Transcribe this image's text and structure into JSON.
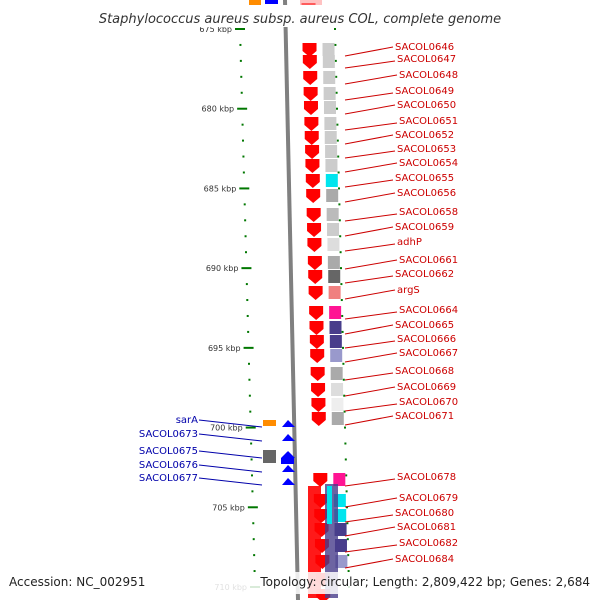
{
  "title": "Staphylococcus aureus subsp. aureus COL, complete genome",
  "footer": {
    "accession": "Accession: NC_002951",
    "topology": "Topology: circular; Length: 2,809,422 bp; Genes: 2,684"
  },
  "colors": {
    "forward_gene": "#ff0000",
    "reverse_gene": "#0000ff",
    "tick": "#007700",
    "backbone": "#808080",
    "forward_label": "#cc0000",
    "reverse_label": "#0000aa"
  },
  "scale": {
    "start_kbp": 675,
    "end_kbp": 710,
    "labeled_ticks": [
      "675 kbp",
      "680 kbp",
      "685 kbp",
      "690 kbp",
      "695 kbp",
      "700 kbp",
      "705 kbp",
      "710 kbp"
    ]
  },
  "forward_genes": [
    {
      "label": "SACOL0646",
      "class": "#cccccc"
    },
    {
      "label": "SACOL0647",
      "class": "#cccccc"
    },
    {
      "label": "SACOL0648",
      "class": "#cccccc"
    },
    {
      "label": "SACOL0649",
      "class": "#cccccc"
    },
    {
      "label": "SACOL0650",
      "class": "#cccccc"
    },
    {
      "label": "SACOL0651",
      "class": "#cccccc"
    },
    {
      "label": "SACOL0652",
      "class": "#cccccc"
    },
    {
      "label": "SACOL0653",
      "class": "#cccccc"
    },
    {
      "label": "SACOL0654",
      "class": "#cccccc"
    },
    {
      "label": "SACOL0655",
      "class": "#00e5ee"
    },
    {
      "label": "SACOL0656",
      "class": "#aaaaaa"
    },
    {
      "label": "SACOL0658",
      "class": "#bbbbbb"
    },
    {
      "label": "SACOL0659",
      "class": "#cccccc"
    },
    {
      "label": "adhP",
      "class": "#dddddd"
    },
    {
      "label": "SACOL0661",
      "class": "#aaaaaa"
    },
    {
      "label": "SACOL0662",
      "class": "#666666"
    },
    {
      "label": "argS",
      "class": "#f08080"
    },
    {
      "label": "SACOL0664",
      "class": "#ff1493"
    },
    {
      "label": "SACOL0665",
      "class": "#483d8b"
    },
    {
      "label": "SACOL0666",
      "class": "#483d8b"
    },
    {
      "label": "SACOL0667",
      "class": "#9999cc"
    },
    {
      "label": "SACOL0668",
      "class": "#aaaaaa"
    },
    {
      "label": "SACOL0669",
      "class": "#dddddd"
    },
    {
      "label": "SACOL0670",
      "class": "#eeeeee"
    },
    {
      "label": "SACOL0671",
      "class": "#aaaaaa"
    },
    {
      "label": "SACOL0678",
      "class": "#ff1493"
    },
    {
      "label": "SACOL0679",
      "class": "#00e5ee"
    },
    {
      "label": "SACOL0680",
      "class": "#00e5ee"
    },
    {
      "label": "SACOL0681",
      "class": "#483d8b"
    },
    {
      "label": "SACOL0682",
      "class": "#483d8b"
    },
    {
      "label": "SACOL0684",
      "class": "#9999cc"
    }
  ],
  "reverse_genes": [
    {
      "label": "sarA",
      "class": "#ff8c00"
    },
    {
      "label": "SACOL0673",
      "class": ""
    },
    {
      "label": "SACOL0675",
      "class": "#666666"
    },
    {
      "label": "SACOL0676",
      "class": ""
    },
    {
      "label": "SACOL0677",
      "class": ""
    }
  ]
}
